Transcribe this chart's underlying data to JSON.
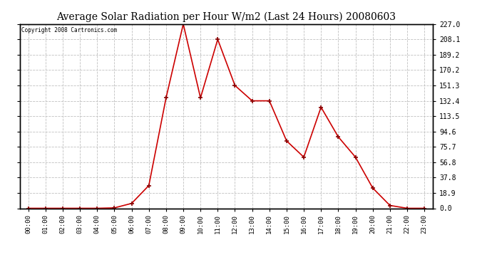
{
  "title": "Average Solar Radiation per Hour W/m2 (Last 24 Hours) 20080603",
  "copyright": "Copyright 2008 Cartronics.com",
  "hours": [
    "00:00",
    "01:00",
    "02:00",
    "03:00",
    "04:00",
    "05:00",
    "06:00",
    "07:00",
    "08:00",
    "09:00",
    "10:00",
    "11:00",
    "12:00",
    "13:00",
    "14:00",
    "15:00",
    "16:00",
    "17:00",
    "18:00",
    "19:00",
    "20:00",
    "21:00",
    "22:00",
    "23:00"
  ],
  "values": [
    0.0,
    0.0,
    0.0,
    0.0,
    0.0,
    0.5,
    6.0,
    28.0,
    136.0,
    227.0,
    136.0,
    208.1,
    151.3,
    132.4,
    132.4,
    83.0,
    63.0,
    124.5,
    88.0,
    63.0,
    25.0,
    3.5,
    0.0,
    0.0
  ],
  "line_color": "#cc0000",
  "marker_color": "#880000",
  "bg_color": "#ffffff",
  "grid_color": "#c0c0c0",
  "yticks": [
    0.0,
    18.9,
    37.8,
    56.8,
    75.7,
    94.6,
    113.5,
    132.4,
    151.3,
    170.2,
    189.2,
    208.1,
    227.0
  ],
  "ymax": 227.0,
  "ymin": 0.0,
  "figwidth": 6.9,
  "figheight": 3.75,
  "dpi": 100
}
